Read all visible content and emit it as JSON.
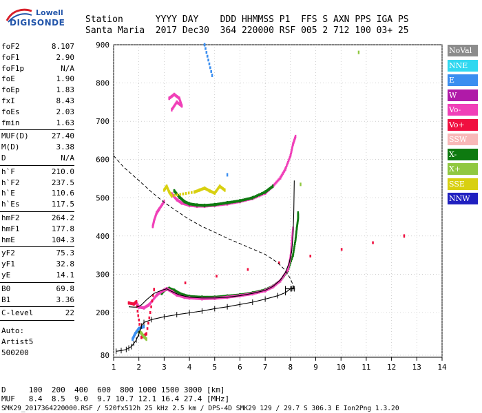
{
  "logo": {
    "line1": "Lowell",
    "line2": "DIGISONDE"
  },
  "header": {
    "row1": "Station      YYYY DAY    DDD HHMMSS P1  FFS S AXN PPS IGA PS",
    "row2": "Santa Maria  2017 Dec30  364 220000 RSF 005 2 712 100 03+ 25"
  },
  "params": [
    {
      "n": "foF2",
      "v": "8.107"
    },
    {
      "n": "foF1",
      "v": "2.90"
    },
    {
      "n": "foF1p",
      "v": "N/A"
    },
    {
      "n": "foE",
      "v": "1.90"
    },
    {
      "n": "foEp",
      "v": "1.83"
    },
    {
      "n": "fxI",
      "v": "8.43"
    },
    {
      "n": "foEs",
      "v": "2.03"
    },
    {
      "n": "fmin",
      "v": "1.63"
    },
    {
      "n": "MUF(D)",
      "v": "27.40"
    },
    {
      "n": "M(D)",
      "v": "3.38"
    },
    {
      "n": "D",
      "v": "N/A"
    },
    {
      "n": "h`F",
      "v": "210.0"
    },
    {
      "n": "h`F2",
      "v": "237.5"
    },
    {
      "n": "h`E",
      "v": "110.6"
    },
    {
      "n": "h`Es",
      "v": "117.5"
    },
    {
      "n": "hmF2",
      "v": "264.2"
    },
    {
      "n": "hmF1",
      "v": "177.8"
    },
    {
      "n": "hmE",
      "v": "104.3"
    },
    {
      "n": "yF2",
      "v": "75.3"
    },
    {
      "n": "yF1",
      "v": "32.8"
    },
    {
      "n": "yE",
      "v": "14.1"
    },
    {
      "n": "B0",
      "v": "69.8"
    },
    {
      "n": "B1",
      "v": "3.36"
    },
    {
      "n": "C-level",
      "v": "22"
    }
  ],
  "notes": [
    "Auto:",
    "Artist5",
    "500200"
  ],
  "legend": [
    {
      "label": "NoVal",
      "color": "#8c8c8c"
    },
    {
      "label": "NNE",
      "color": "#30d8f0"
    },
    {
      "label": "E",
      "color": "#3a8ef0"
    },
    {
      "label": "W",
      "color": "#b01aa8"
    },
    {
      "label": "Vo-",
      "color": "#f040b8"
    },
    {
      "label": "Vo+",
      "color": "#f01040"
    },
    {
      "label": "SSW",
      "color": "#f8b8b8"
    },
    {
      "label": "X-",
      "color": "#0e7a10"
    },
    {
      "label": "X+",
      "color": "#90c840"
    },
    {
      "label": "SSE",
      "color": "#d8d010"
    },
    {
      "label": "NNW",
      "color": "#2020c0"
    }
  ],
  "footer": {
    "d_line": "D     100  200  400  600  800 1000 1500 3000 [km]",
    "muf_line": "MUF   8.4  8.5  9.0  9.7 10.7 12.1 16.4 27.4 [MHz]",
    "file_line": "SMK29_2017364220000.RSF / 520fx512h 25 kHz 2.5 km / DPS-4D SMK29 129 / 29.7 S 306.3 E Ion2Png 1.3.20"
  },
  "chart_data": {
    "type": "scatter",
    "xlim": [
      1,
      14
    ],
    "ylim": [
      80,
      900
    ],
    "x_ticks": [
      "1",
      "2",
      "3",
      "4",
      "5",
      "6",
      "7",
      "8",
      "9",
      "10",
      "11",
      "12",
      "13",
      "14"
    ],
    "y_ticks": [
      "80",
      "200",
      "300",
      "400",
      "500",
      "600",
      "700",
      "800",
      "900"
    ],
    "grid": true,
    "series": [
      {
        "name": "X-",
        "color": "#0e7a10",
        "x": [
          2.9,
          3.0,
          3.2,
          3.4,
          3.6,
          3.8,
          4.0,
          4.5,
          5.0,
          5.5,
          6.0,
          6.5,
          7.0,
          7.3,
          7.6,
          7.9,
          8.1,
          8.2,
          8.25,
          8.3,
          8.3
        ],
        "y": [
          250,
          258,
          263,
          258,
          250,
          245,
          242,
          240,
          240,
          243,
          246,
          251,
          259,
          268,
          283,
          310,
          350,
          390,
          420,
          445,
          460
        ]
      },
      {
        "name": "Vo-",
        "color": "#f040b8",
        "x": [
          1.9,
          2.0,
          2.2,
          2.4,
          2.7,
          2.9,
          3.1,
          3.3,
          3.5,
          3.8,
          4.0,
          4.5,
          5.0,
          5.5,
          6.0,
          6.5,
          7.0,
          7.3,
          7.6,
          7.9,
          8.0,
          8.05,
          8.1
        ],
        "y": [
          225,
          214,
          212,
          220,
          245,
          255,
          262,
          255,
          246,
          240,
          238,
          236,
          237,
          240,
          244,
          249,
          257,
          267,
          283,
          312,
          345,
          380,
          420
        ]
      },
      {
        "name": "Vo-",
        "color": "#f040b8",
        "x": [
          3.3,
          3.5,
          3.7,
          4.0,
          4.3,
          4.6,
          5.0,
          5.5,
          6.0,
          6.5,
          7.0,
          7.3,
          7.6,
          7.8,
          8.0,
          8.1,
          8.2
        ],
        "y": [
          510,
          495,
          486,
          480,
          478,
          478,
          480,
          484,
          490,
          498,
          512,
          530,
          552,
          575,
          610,
          640,
          660
        ]
      },
      {
        "name": "X-",
        "color": "#0e7a10",
        "x": [
          3.4,
          3.6,
          3.8,
          4.0,
          4.3,
          4.6,
          5.0,
          5.5,
          6.0,
          6.5,
          7.0,
          7.3
        ],
        "y": [
          518,
          502,
          490,
          484,
          481,
          480,
          482,
          487,
          492,
          500,
          515,
          530
        ]
      },
      {
        "name": "SSE",
        "color": "#d8d010",
        "x": [
          3.0,
          3.1,
          3.2,
          3.3,
          4.2,
          4.4,
          4.6,
          4.8,
          5.0,
          5.2,
          5.4
        ],
        "y": [
          520,
          530,
          515,
          505,
          515,
          520,
          525,
          518,
          512,
          530,
          520
        ]
      },
      {
        "name": "Vo-",
        "color": "#f040b8",
        "x": [
          2.55,
          2.6,
          2.7,
          2.8,
          3.0,
          3.2,
          3.4,
          3.6,
          3.7,
          3.5,
          3.3
        ],
        "y": [
          425,
          440,
          460,
          470,
          490,
          760,
          770,
          760,
          740,
          750,
          730
        ]
      },
      {
        "name": "Vo+",
        "color": "#f01040",
        "x": [
          1.6,
          1.8,
          1.9,
          2.1,
          2.3,
          2.6,
          12.5
        ],
        "y": [
          225,
          222,
          228,
          130,
          140,
          260,
          400
        ]
      },
      {
        "name": "X+",
        "color": "#90c840",
        "x": [
          1.9,
          2.0,
          2.1,
          2.2,
          2.3,
          8.4,
          10.7
        ],
        "y": [
          145,
          148,
          142,
          132,
          125,
          535,
          880
        ]
      },
      {
        "name": "E",
        "color": "#3a8ef0",
        "x": [
          1.75,
          1.85,
          2.0,
          2.2,
          4.6,
          4.9,
          5.5
        ],
        "y": [
          125,
          140,
          155,
          160,
          900,
          820,
          560
        ]
      }
    ],
    "profile": {
      "name": "profile",
      "x": [
        1.1,
        1.3,
        1.5,
        1.6,
        1.7,
        1.8,
        1.9,
        2.0,
        2.1,
        2.2,
        2.5,
        3.0,
        3.5,
        4.0,
        4.5,
        5.0,
        5.5,
        6.0,
        6.5,
        7.0,
        7.5,
        7.8,
        8.0,
        8.1,
        8.15,
        8.05,
        7.8
      ],
      "y": [
        91,
        93,
        96,
        100,
        104,
        113,
        123,
        140,
        162,
        172,
        180,
        188,
        194,
        199,
        204,
        210,
        215,
        221,
        227,
        235,
        244,
        252,
        262,
        264,
        262,
        262,
        262
      ]
    },
    "virtual_trace": {
      "name": "trace",
      "x": [
        1.6,
        1.8,
        1.9,
        2.0,
        2.1,
        2.3,
        2.6,
        2.9,
        3.1,
        3.3,
        3.6,
        4.0,
        4.5,
        5.0,
        5.5,
        6.0,
        6.5,
        7.0,
        7.3,
        7.6,
        7.8,
        7.95,
        8.05,
        8.1,
        8.13,
        8.15
      ],
      "y": [
        215,
        214,
        214,
        216,
        220,
        233,
        250,
        258,
        262,
        255,
        246,
        240,
        238,
        238,
        240,
        244,
        250,
        258,
        268,
        285,
        305,
        330,
        360,
        400,
        460,
        545
      ]
    },
    "muf_curve": {
      "name": "MUF",
      "x": [
        1.0,
        1.4,
        2.0,
        2.5,
        3.0,
        3.5,
        4.0,
        4.5,
        5.0,
        5.5,
        6.0,
        6.5,
        7.0,
        7.5,
        7.8,
        8.0,
        8.1,
        8.15
      ],
      "y": [
        610,
        580,
        545,
        515,
        488,
        465,
        443,
        425,
        410,
        394,
        380,
        366,
        352,
        330,
        310,
        288,
        272,
        262
      ]
    }
  }
}
